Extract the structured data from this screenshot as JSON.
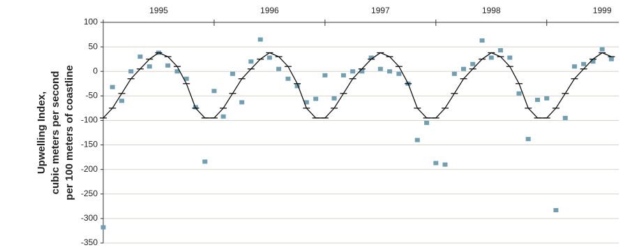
{
  "chart_data": {
    "type": "scatter",
    "y_label": [
      "Upwelling Index,",
      "cubic meters per second",
      "per 100 meters of coastline"
    ],
    "xlim": [
      1995,
      1999.65
    ],
    "xticks": [
      1995,
      1996,
      1997,
      1998,
      1999
    ],
    "ylim": [
      -350,
      100
    ],
    "yticks": [
      -350,
      -300,
      -250,
      -200,
      -150,
      -100,
      -50,
      0,
      50,
      100
    ],
    "grid": true,
    "series": [
      {
        "kind": "points",
        "color": "#6f9fb3",
        "x": [
          1995.0,
          1995.083,
          1995.167,
          1995.25,
          1995.333,
          1995.417,
          1995.5,
          1995.583,
          1995.667,
          1995.75,
          1995.833,
          1995.917,
          1996.0,
          1996.083,
          1996.167,
          1996.25,
          1996.333,
          1996.417,
          1996.5,
          1996.583,
          1996.667,
          1996.75,
          1996.833,
          1996.917,
          1997.0,
          1997.083,
          1997.167,
          1997.25,
          1997.333,
          1997.417,
          1997.5,
          1997.583,
          1997.667,
          1997.75,
          1997.833,
          1997.917,
          1998.0,
          1998.083,
          1998.167,
          1998.25,
          1998.333,
          1998.417,
          1998.5,
          1998.583,
          1998.667,
          1998.75,
          1998.833,
          1998.917,
          1999.0,
          1999.083,
          1999.167,
          1999.25,
          1999.333,
          1999.417,
          1999.5,
          1999.583
        ],
        "values": [
          -318,
          -32,
          -60,
          0,
          30,
          10,
          38,
          12,
          0,
          -15,
          -73,
          -184,
          -40,
          -92,
          -5,
          -63,
          20,
          65,
          28,
          5,
          -15,
          -30,
          -63,
          -56,
          -8,
          -55,
          -8,
          0,
          0,
          28,
          5,
          0,
          -5,
          -25,
          -140,
          -105,
          -187,
          -190,
          -5,
          5,
          15,
          63,
          28,
          43,
          28,
          -45,
          -138,
          -58,
          -55,
          -283,
          -95,
          10,
          15,
          20,
          45,
          25
        ]
      },
      {
        "kind": "line",
        "color": "#111111",
        "x": [
          1995.0,
          1995.083,
          1995.167,
          1995.25,
          1995.333,
          1995.417,
          1995.5,
          1995.583,
          1995.667,
          1995.75,
          1995.833,
          1995.917,
          1996.0,
          1996.083,
          1996.167,
          1996.25,
          1996.333,
          1996.417,
          1996.5,
          1996.583,
          1996.667,
          1996.75,
          1996.833,
          1996.917,
          1997.0,
          1997.083,
          1997.167,
          1997.25,
          1997.333,
          1997.417,
          1997.5,
          1997.583,
          1997.667,
          1997.75,
          1997.833,
          1997.917,
          1998.0,
          1998.083,
          1998.167,
          1998.25,
          1998.333,
          1998.417,
          1998.5,
          1998.583,
          1998.667,
          1998.75,
          1998.833,
          1998.917,
          1999.0,
          1999.083,
          1999.167,
          1999.25,
          1999.333,
          1999.417,
          1999.5,
          1999.583
        ],
        "values": [
          -95,
          -75,
          -45,
          -15,
          5,
          25,
          38,
          30,
          10,
          -25,
          -75,
          -95,
          -95,
          -75,
          -45,
          -15,
          5,
          25,
          38,
          30,
          10,
          -25,
          -75,
          -95,
          -95,
          -75,
          -45,
          -15,
          5,
          25,
          38,
          30,
          10,
          -25,
          -75,
          -95,
          -95,
          -75,
          -45,
          -15,
          5,
          25,
          38,
          30,
          10,
          -25,
          -75,
          -95,
          -95,
          -75,
          -45,
          -15,
          5,
          25,
          38,
          30
        ]
      }
    ]
  }
}
